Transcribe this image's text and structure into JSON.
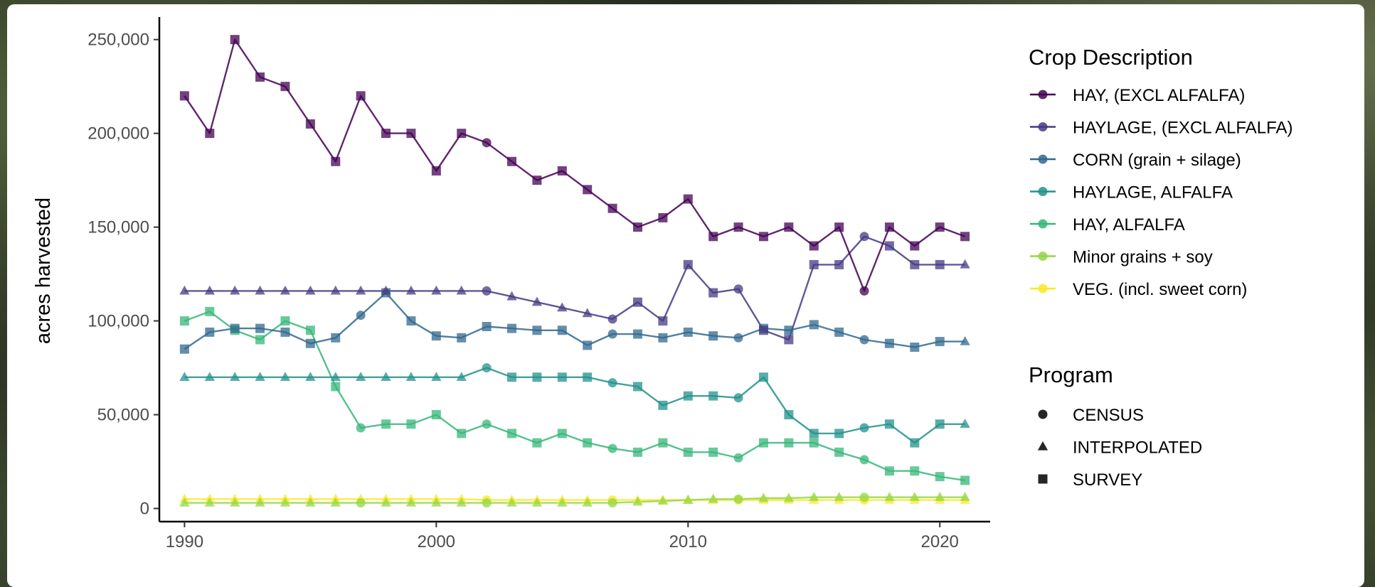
{
  "chart_data": {
    "type": "line",
    "xlabel": "",
    "ylabel": "acres harvested",
    "xlim": [
      1989,
      2022
    ],
    "ylim": [
      -7000,
      262000
    ],
    "x_ticks": [
      1990,
      2000,
      2010,
      2020
    ],
    "x_tick_labels": [
      "1990",
      "2000",
      "2010",
      "2020"
    ],
    "y_ticks": [
      0,
      50000,
      100000,
      150000,
      200000,
      250000
    ],
    "y_tick_labels": [
      "0",
      "50,000",
      "100,000",
      "150,000",
      "200,000",
      "250,000"
    ],
    "grid": false,
    "legend_placement": "right",
    "legend": {
      "color_title": "Crop Description",
      "shape_title": "Program",
      "shapes": [
        {
          "label": "CENSUS",
          "shape": "circle"
        },
        {
          "label": "INTERPOLATED",
          "shape": "triangle"
        },
        {
          "label": "SURVEY",
          "shape": "square"
        }
      ]
    },
    "series": [
      {
        "name": "HAY, (EXCL ALFALFA)",
        "color": "#440154",
        "x": [
          1990,
          1991,
          1992,
          1993,
          1994,
          1995,
          1996,
          1997,
          1998,
          1999,
          2000,
          2001,
          2002,
          2003,
          2004,
          2005,
          2006,
          2007,
          2008,
          2009,
          2010,
          2011,
          2012,
          2013,
          2014,
          2015,
          2016,
          2017,
          2018,
          2019,
          2020,
          2021
        ],
        "y": [
          220000,
          200000,
          250000,
          230000,
          225000,
          205000,
          185000,
          220000,
          200000,
          200000,
          180000,
          200000,
          195000,
          185000,
          175000,
          180000,
          170000,
          160000,
          150000,
          155000,
          165000,
          145000,
          150000,
          145000,
          150000,
          140000,
          150000,
          116000,
          150000,
          140000,
          150000,
          145000
        ],
        "shapes": [
          "square",
          "square",
          "square",
          "square",
          "square",
          "square",
          "square",
          "square",
          "square",
          "square",
          "square",
          "square",
          "circle",
          "square",
          "square",
          "square",
          "square",
          "square",
          "square",
          "square",
          "square",
          "square",
          "square",
          "square",
          "square",
          "square",
          "square",
          "circle",
          "square",
          "square",
          "square",
          "square"
        ]
      },
      {
        "name": "HAYLAGE, (EXCL ALFALFA)",
        "color": "#443983",
        "x": [
          1990,
          1991,
          1992,
          1993,
          1994,
          1995,
          1996,
          1997,
          1998,
          1999,
          2000,
          2001,
          2002,
          2003,
          2004,
          2005,
          2006,
          2007,
          2008,
          2009,
          2010,
          2011,
          2012,
          2013,
          2014,
          2015,
          2016,
          2017,
          2018,
          2019,
          2020,
          2021
        ],
        "y": [
          116000,
          116000,
          116000,
          116000,
          116000,
          116000,
          116000,
          116000,
          116000,
          116000,
          116000,
          116000,
          116000,
          113000,
          110000,
          107000,
          104000,
          101000,
          110000,
          100000,
          130000,
          115000,
          117000,
          95000,
          90000,
          130000,
          130000,
          145000,
          140000,
          130000,
          130000,
          130000
        ],
        "shapes": [
          "triangle",
          "triangle",
          "triangle",
          "triangle",
          "triangle",
          "triangle",
          "triangle",
          "triangle",
          "triangle",
          "triangle",
          "triangle",
          "triangle",
          "circle",
          "triangle",
          "triangle",
          "triangle",
          "triangle",
          "circle",
          "square",
          "square",
          "square",
          "square",
          "circle",
          "square",
          "square",
          "square",
          "square",
          "circle",
          "square",
          "square",
          "square",
          "triangle"
        ]
      },
      {
        "name": "CORN (grain + silage)",
        "color": "#31688e",
        "x": [
          1990,
          1991,
          1992,
          1993,
          1994,
          1995,
          1996,
          1997,
          1998,
          1999,
          2000,
          2001,
          2002,
          2003,
          2004,
          2005,
          2006,
          2007,
          2008,
          2009,
          2010,
          2011,
          2012,
          2013,
          2014,
          2015,
          2016,
          2017,
          2018,
          2019,
          2020,
          2021
        ],
        "y": [
          85000,
          94000,
          96000,
          96000,
          94000,
          88000,
          91000,
          103000,
          115000,
          100000,
          92000,
          91000,
          97000,
          96000,
          95000,
          95000,
          87000,
          93000,
          93000,
          91000,
          94000,
          92000,
          91000,
          96000,
          95000,
          98000,
          94000,
          90000,
          88000,
          86000,
          89000,
          89000
        ],
        "shapes": [
          "square",
          "square",
          "square",
          "square",
          "square",
          "square",
          "square",
          "circle",
          "square",
          "square",
          "square",
          "square",
          "square",
          "square",
          "square",
          "square",
          "square",
          "circle",
          "square",
          "square",
          "square",
          "square",
          "circle",
          "square",
          "square",
          "square",
          "square",
          "circle",
          "square",
          "square",
          "square",
          "triangle"
        ]
      },
      {
        "name": "HAYLAGE, ALFALFA",
        "color": "#21918c",
        "x": [
          1990,
          1991,
          1992,
          1993,
          1994,
          1995,
          1996,
          1997,
          1998,
          1999,
          2000,
          2001,
          2002,
          2003,
          2004,
          2005,
          2006,
          2007,
          2008,
          2009,
          2010,
          2011,
          2012,
          2013,
          2014,
          2015,
          2016,
          2017,
          2018,
          2019,
          2020,
          2021
        ],
        "y": [
          70000,
          70000,
          70000,
          70000,
          70000,
          70000,
          70000,
          70000,
          70000,
          70000,
          70000,
          70000,
          75000,
          70000,
          70000,
          70000,
          70000,
          67000,
          65000,
          55000,
          60000,
          60000,
          59000,
          70000,
          50000,
          40000,
          40000,
          43000,
          45000,
          35000,
          45000,
          45000
        ],
        "shapes": [
          "triangle",
          "triangle",
          "triangle",
          "triangle",
          "triangle",
          "triangle",
          "triangle",
          "triangle",
          "triangle",
          "triangle",
          "triangle",
          "triangle",
          "circle",
          "square",
          "square",
          "square",
          "square",
          "circle",
          "square",
          "square",
          "square",
          "square",
          "circle",
          "square",
          "square",
          "square",
          "square",
          "circle",
          "square",
          "square",
          "square",
          "triangle"
        ]
      },
      {
        "name": "HAY, ALFALFA",
        "color": "#35b779",
        "x": [
          1990,
          1991,
          1992,
          1993,
          1994,
          1995,
          1996,
          1997,
          1998,
          1999,
          2000,
          2001,
          2002,
          2003,
          2004,
          2005,
          2006,
          2007,
          2008,
          2009,
          2010,
          2011,
          2012,
          2013,
          2014,
          2015,
          2016,
          2017,
          2018,
          2019,
          2020,
          2021
        ],
        "y": [
          100000,
          105000,
          95000,
          90000,
          100000,
          95000,
          65000,
          43000,
          45000,
          45000,
          50000,
          40000,
          45000,
          40000,
          35000,
          40000,
          35000,
          32000,
          30000,
          35000,
          30000,
          30000,
          27000,
          35000,
          35000,
          35000,
          30000,
          26000,
          20000,
          20000,
          17000,
          15000
        ],
        "shapes": [
          "square",
          "square",
          "square",
          "square",
          "square",
          "square",
          "square",
          "circle",
          "square",
          "square",
          "square",
          "square",
          "circle",
          "square",
          "square",
          "square",
          "square",
          "circle",
          "square",
          "square",
          "square",
          "square",
          "circle",
          "square",
          "square",
          "square",
          "square",
          "circle",
          "square",
          "square",
          "square",
          "square"
        ]
      },
      {
        "name": "Minor grains + soy",
        "color": "#90d743",
        "x": [
          1990,
          1991,
          1992,
          1993,
          1994,
          1995,
          1996,
          1997,
          1998,
          1999,
          2000,
          2001,
          2002,
          2003,
          2004,
          2005,
          2006,
          2007,
          2008,
          2009,
          2010,
          2011,
          2012,
          2013,
          2014,
          2015,
          2016,
          2017,
          2018,
          2019,
          2020,
          2021
        ],
        "y": [
          3000,
          3000,
          3000,
          3000,
          3000,
          3000,
          3000,
          3000,
          3000,
          3000,
          3000,
          3000,
          3000,
          3000,
          3000,
          3000,
          3000,
          3000,
          3500,
          4000,
          4500,
          5000,
          5000,
          5500,
          5500,
          6000,
          6000,
          6000,
          6000,
          6000,
          6000,
          6000
        ],
        "shapes": [
          "triangle",
          "triangle",
          "triangle",
          "triangle",
          "triangle",
          "triangle",
          "triangle",
          "circle",
          "triangle",
          "triangle",
          "triangle",
          "triangle",
          "circle",
          "triangle",
          "triangle",
          "triangle",
          "triangle",
          "circle",
          "triangle",
          "triangle",
          "triangle",
          "triangle",
          "circle",
          "triangle",
          "triangle",
          "triangle",
          "triangle",
          "circle",
          "triangle",
          "triangle",
          "triangle",
          "triangle"
        ]
      },
      {
        "name": "VEG. (incl. sweet corn)",
        "color": "#fde725",
        "x": [
          1990,
          1991,
          1992,
          1993,
          1994,
          1995,
          1996,
          1997,
          1998,
          1999,
          2000,
          2001,
          2002,
          2003,
          2004,
          2005,
          2006,
          2007,
          2008,
          2009,
          2010,
          2011,
          2012,
          2013,
          2014,
          2015,
          2016,
          2017,
          2018,
          2019,
          2020,
          2021
        ],
        "y": [
          5000,
          5000,
          5000,
          5000,
          5000,
          5000,
          5000,
          5000,
          5000,
          5000,
          5000,
          5000,
          4500,
          4500,
          4500,
          4500,
          4500,
          4500,
          4500,
          4500,
          4500,
          4500,
          4500,
          4500,
          4500,
          4500,
          4500,
          4500,
          4500,
          4500,
          4500,
          4500
        ],
        "shapes": [
          "triangle",
          "triangle",
          "triangle",
          "triangle",
          "triangle",
          "triangle",
          "triangle",
          "triangle",
          "triangle",
          "triangle",
          "triangle",
          "triangle",
          "circle",
          "triangle",
          "triangle",
          "triangle",
          "triangle",
          "circle",
          "triangle",
          "triangle",
          "triangle",
          "triangle",
          "circle",
          "triangle",
          "triangle",
          "triangle",
          "triangle",
          "circle",
          "triangle",
          "triangle",
          "triangle",
          "triangle"
        ]
      }
    ]
  }
}
